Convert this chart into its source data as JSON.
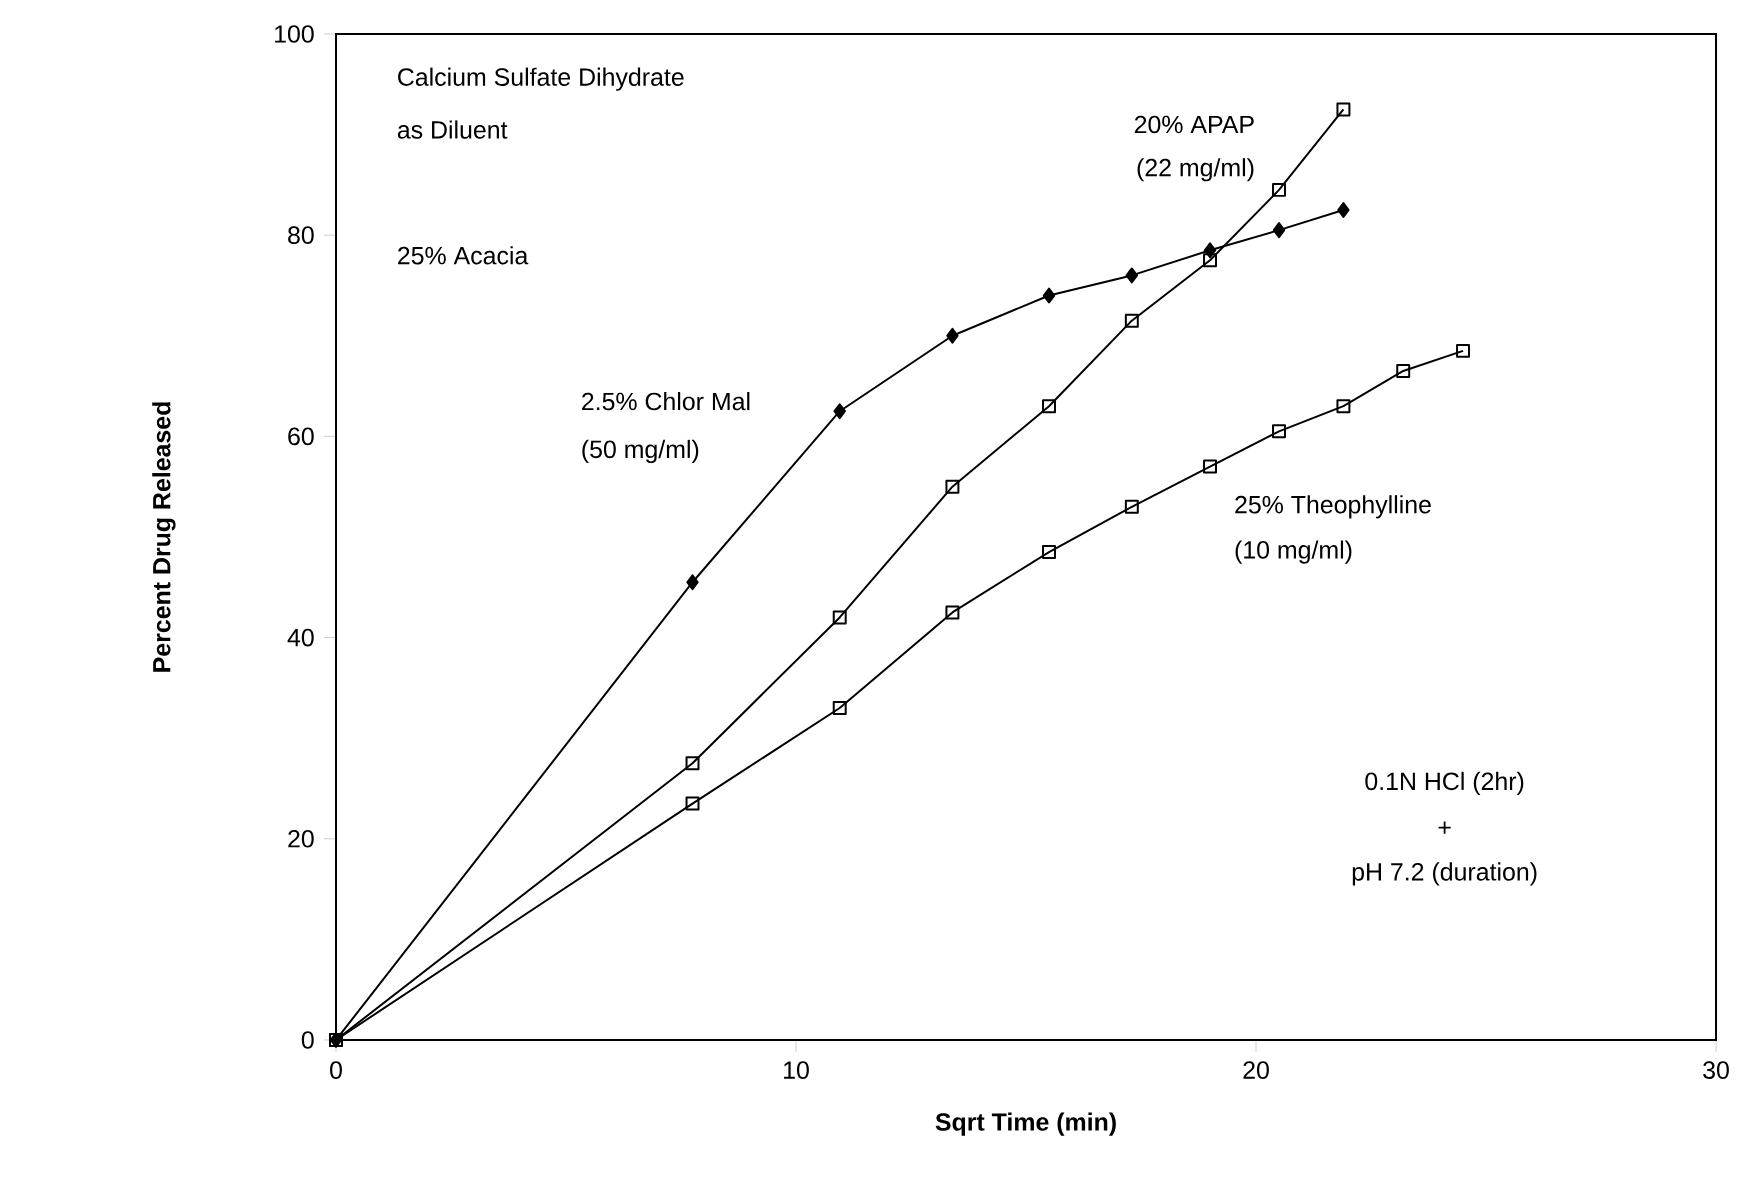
{
  "chart_data": {
    "type": "line",
    "xlabel": "Sqrt Time (min)",
    "ylabel": "Percent Drug Released",
    "xlim": [
      0,
      30
    ],
    "ylim": [
      0,
      100
    ],
    "xticks": [
      0,
      10,
      20,
      30
    ],
    "yticks": [
      0,
      20,
      40,
      60,
      80,
      100
    ],
    "grid": false,
    "line_style": "solid",
    "series": [
      {
        "name": "2.5% Chlor Mal",
        "color": "#000000",
        "marker": "diamond",
        "x": [
          0,
          7.75,
          10.95,
          13.4,
          15.5,
          17.3,
          19.0,
          20.5,
          21.9
        ],
        "values": [
          0,
          45.5,
          62.5,
          70,
          74,
          76,
          78.5,
          80.5,
          82.5
        ]
      },
      {
        "name": "20% APAP",
        "color": "#000000",
        "marker": "square",
        "x": [
          0,
          7.75,
          10.95,
          13.4,
          15.5,
          17.3,
          19.0,
          20.5,
          21.9
        ],
        "values": [
          0,
          27.5,
          42,
          55,
          63,
          71.5,
          77.5,
          84.5,
          92.5
        ]
      },
      {
        "name": "25% Theophylline",
        "color": "#000000",
        "marker": "square",
        "x": [
          0,
          7.75,
          10.95,
          13.4,
          15.5,
          17.3,
          19.0,
          20.5,
          21.9,
          23.2,
          24.5
        ],
        "values": [
          0,
          23.5,
          33,
          42.5,
          48.5,
          53,
          57,
          60.5,
          63,
          66.5,
          68.5
        ]
      }
    ],
    "annotations": [
      "Calcium Sulfate Dihydrate",
      "as Diluent",
      "25% Acacia",
      "(50  mg/ml)",
      "(22  mg/ml)",
      "(10  mg/ml)",
      "0.1N HCl (2hr)",
      "+",
      "pH 7.2 (duration)"
    ]
  }
}
